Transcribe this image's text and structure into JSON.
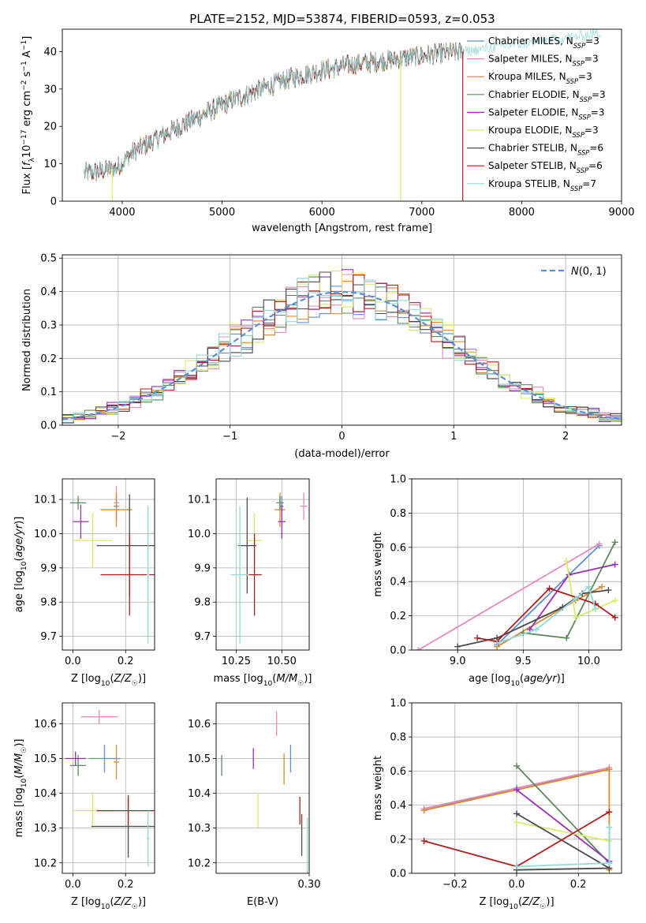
{
  "figure_title": "PLATE=2152, MJD=53874, FIBERID=0593, z=0.053",
  "colors": {
    "Chabrier MILES": "#5f8fd6",
    "Salpeter MILES": "#e58ac0",
    "Kroupa MILES": "#d98a2e",
    "Chabrier ELODIE": "#5c8a5c",
    "Salpeter ELODIE": "#9a2fb5",
    "Kroupa ELODIE": "#d8ec6a",
    "Chabrier STELIB": "#4a4a4a",
    "Salpeter STELIB": "#b01c1c",
    "Kroupa STELIB": "#8fdad8",
    "normal": "#5b8fd6"
  },
  "chart_data": [
    {
      "id": "spectrum",
      "type": "line",
      "title": "PLATE=2152, MJD=53874, FIBERID=0593, z=0.053",
      "xlabel": "wavelength [Angstrom, rest frame]",
      "ylabel": "Flux [f_λ 10^-17 erg cm^-2 s^-1 A^-1]",
      "xlim": [
        3400,
        9000
      ],
      "ylim": [
        0,
        46
      ],
      "xticks": [
        4000,
        5000,
        6000,
        7000,
        8000,
        9000
      ],
      "yticks": [
        0,
        10,
        20,
        30,
        40
      ],
      "legend_loc": "right",
      "legend": [
        {
          "name": "Chabrier MILES, N_SSP=3",
          "base": "Chabrier MILES, N",
          "sub": "SSP",
          "tail": "=3"
        },
        {
          "name": "Salpeter MILES, N_SSP=3",
          "base": "Salpeter MILES, N",
          "sub": "SSP",
          "tail": "=3"
        },
        {
          "name": "Kroupa MILES, N_SSP=3",
          "base": "Kroupa MILES, N",
          "sub": "SSP",
          "tail": "=3"
        },
        {
          "name": "Chabrier ELODIE, N_SSP=3",
          "base": "Chabrier ELODIE, N",
          "sub": "SSP",
          "tail": "=3"
        },
        {
          "name": "Salpeter ELODIE, N_SSP=3",
          "base": "Salpeter ELODIE, N",
          "sub": "SSP",
          "tail": "=3"
        },
        {
          "name": "Kroupa ELODIE, N_SSP=3",
          "base": "Kroupa ELODIE, N",
          "sub": "SSP",
          "tail": "=3"
        },
        {
          "name": "Chabrier STELIB, N_SSP=6",
          "base": "Chabrier STELIB, N",
          "sub": "SSP",
          "tail": "=6"
        },
        {
          "name": "Salpeter STELIB, N_SSP=6",
          "base": "Salpeter STELIB, N",
          "sub": "SSP",
          "tail": "=6"
        },
        {
          "name": "Kroupa STELIB, N_SSP=7",
          "base": "Kroupa STELIB, N",
          "sub": "SSP",
          "tail": "=7"
        }
      ],
      "continuum": [
        [
          3620,
          7.5
        ],
        [
          3800,
          8
        ],
        [
          3950,
          9
        ],
        [
          4100,
          13
        ],
        [
          4300,
          16
        ],
        [
          4500,
          19
        ],
        [
          4800,
          23
        ],
        [
          5100,
          27
        ],
        [
          5400,
          30
        ],
        [
          5700,
          33
        ],
        [
          6000,
          35
        ],
        [
          6300,
          36.5
        ],
        [
          6600,
          37.5
        ],
        [
          6900,
          38.5
        ],
        [
          7200,
          39.5
        ],
        [
          7420,
          40
        ]
      ],
      "noise_amplitude": 2.5,
      "red_extension": {
        "series": "Kroupa STELIB",
        "end_x": 8800,
        "end_y": 45
      },
      "dropouts": [
        {
          "series": "Kroupa ELODIE",
          "x": 3900,
          "y": 0
        },
        {
          "series": "Kroupa ELODIE",
          "x": 6790,
          "y": 0
        },
        {
          "series": "Salpeter STELIB",
          "x": 7410,
          "y": 0
        }
      ]
    },
    {
      "id": "residuals",
      "type": "histogram",
      "xlabel": "(data-model)/error",
      "ylabel": "Normed distribution",
      "xlim": [
        -2.5,
        2.5
      ],
      "ylim": [
        0,
        0.51
      ],
      "xticks": [
        -2,
        -1,
        0,
        1,
        2
      ],
      "yticks": [
        0.0,
        0.1,
        0.2,
        0.3,
        0.4,
        0.5
      ],
      "grid": true,
      "legend_loc": "top-right",
      "reference_curve": {
        "name": "N(0,1)",
        "mean": 0,
        "sigma": 1,
        "style": "dashed"
      },
      "bin_width": 0.1,
      "series": [
        "Chabrier MILES",
        "Salpeter MILES",
        "Kroupa MILES",
        "Chabrier ELODIE",
        "Salpeter ELODIE",
        "Kroupa ELODIE",
        "Chabrier STELIB",
        "Salpeter STELIB",
        "Kroupa STELIB"
      ]
    },
    {
      "id": "age_vs_Z",
      "type": "errorbar",
      "xlabel": "Z [log10(Z/Z☉)]",
      "ylabel": "age [log10(age/yr)]",
      "xlim": [
        -0.04,
        0.31
      ],
      "ylim": [
        9.66,
        10.16
      ],
      "xticks": [
        0.0,
        0.2
      ],
      "yticks": [
        9.7,
        9.8,
        9.9,
        10.0,
        10.1
      ],
      "grid": true,
      "points": [
        {
          "series": "Chabrier MILES",
          "x": 0.165,
          "y": 10.08,
          "xerr": 0.01,
          "yerr": 0.03
        },
        {
          "series": "Salpeter MILES",
          "x": 0.165,
          "y": 10.09,
          "xerr": 0.01,
          "yerr": 0.05
        },
        {
          "series": "Kroupa MILES",
          "x": 0.165,
          "y": 10.07,
          "xerr": 0.06,
          "yerr": 0.05
        },
        {
          "series": "Chabrier ELODIE",
          "x": 0.02,
          "y": 10.09,
          "xerr": 0.03,
          "yerr": 0.02
        },
        {
          "series": "Salpeter ELODIE",
          "x": 0.03,
          "y": 10.035,
          "xerr": 0.03,
          "yerr": 0.05
        },
        {
          "series": "Kroupa ELODIE",
          "x": 0.075,
          "y": 9.98,
          "xerr": 0.075,
          "yerr": 0.08
        },
        {
          "series": "Chabrier STELIB",
          "x": 0.215,
          "y": 9.965,
          "xerr": 0.125,
          "yerr": 0.15
        },
        {
          "series": "Salpeter STELIB",
          "x": 0.215,
          "y": 9.88,
          "xerr": 0.11,
          "yerr": 0.12
        },
        {
          "series": "Kroupa STELIB",
          "x": 0.285,
          "y": 9.88,
          "xerr": 0.005,
          "yerr": 0.2
        }
      ]
    },
    {
      "id": "age_vs_mass",
      "type": "errorbar",
      "xlabel": "mass [log10(M/M☉)]",
      "ylabel": "",
      "xlim": [
        10.14,
        10.65
      ],
      "ylim": [
        9.66,
        10.16
      ],
      "xticks": [
        10.25,
        10.5
      ],
      "yticks": [
        9.7,
        9.8,
        9.9,
        10.0,
        10.1
      ],
      "grid": true,
      "points": [
        {
          "series": "Chabrier MILES",
          "x": 10.5,
          "y": 10.08,
          "xerr": 0.01,
          "yerr": 0.03
        },
        {
          "series": "Salpeter MILES",
          "x": 10.62,
          "y": 10.08,
          "xerr": 0.02,
          "yerr": 0.04
        },
        {
          "series": "Kroupa MILES",
          "x": 10.49,
          "y": 10.07,
          "xerr": 0.03,
          "yerr": 0.05
        },
        {
          "series": "Chabrier ELODIE",
          "x": 10.49,
          "y": 10.09,
          "xerr": 0.02,
          "yerr": 0.02
        },
        {
          "series": "Salpeter ELODIE",
          "x": 10.5,
          "y": 10.035,
          "xerr": 0.02,
          "yerr": 0.05
        },
        {
          "series": "Kroupa ELODIE",
          "x": 10.35,
          "y": 9.98,
          "xerr": 0.04,
          "yerr": 0.08
        },
        {
          "series": "Chabrier STELIB",
          "x": 10.31,
          "y": 9.965,
          "xerr": 0.05,
          "yerr": 0.14
        },
        {
          "series": "Salpeter STELIB",
          "x": 10.35,
          "y": 9.88,
          "xerr": 0.04,
          "yerr": 0.12
        },
        {
          "series": "Kroupa STELIB",
          "x": 10.27,
          "y": 9.88,
          "xerr": 0.05,
          "yerr": 0.2
        }
      ]
    },
    {
      "id": "weights_vs_age",
      "type": "line",
      "xlabel": "age [log10(age/yr)]",
      "ylabel": "mass weight",
      "xlim": [
        8.65,
        10.25
      ],
      "ylim": [
        0,
        1.0
      ],
      "xticks": [
        9.0,
        9.5,
        10.0
      ],
      "yticks": [
        0.0,
        0.2,
        0.4,
        0.6,
        0.8,
        1.0
      ],
      "grid": true,
      "series": [
        {
          "series": "Chabrier MILES",
          "points": [
            [
              9.3,
              0.03
            ],
            [
              9.85,
              0.44
            ],
            [
              10.08,
              0.61
            ]
          ]
        },
        {
          "series": "Salpeter MILES",
          "points": [
            [
              8.7,
              0.0
            ],
            [
              10.08,
              0.62
            ]
          ]
        },
        {
          "series": "Kroupa MILES",
          "points": [
            [
              9.3,
              0.02
            ],
            [
              9.9,
              0.29
            ],
            [
              10.1,
              0.37
            ]
          ]
        },
        {
          "series": "Chabrier ELODIE",
          "points": [
            [
              9.5,
              0.1
            ],
            [
              9.83,
              0.07
            ],
            [
              10.2,
              0.63
            ]
          ]
        },
        {
          "series": "Salpeter ELODIE",
          "points": [
            [
              9.55,
              0.12
            ],
            [
              9.85,
              0.44
            ],
            [
              10.2,
              0.5
            ]
          ]
        },
        {
          "series": "Kroupa ELODIE",
          "points": [
            [
              9.83,
              0.52
            ],
            [
              9.9,
              0.19
            ],
            [
              10.2,
              0.29
            ]
          ]
        },
        {
          "series": "Chabrier STELIB",
          "points": [
            [
              9.0,
              0.02
            ],
            [
              9.3,
              0.07
            ],
            [
              9.8,
              0.25
            ],
            [
              9.95,
              0.33
            ],
            [
              10.15,
              0.35
            ]
          ]
        },
        {
          "series": "Salpeter STELIB",
          "points": [
            [
              9.15,
              0.07
            ],
            [
              9.3,
              0.05
            ],
            [
              9.7,
              0.36
            ],
            [
              10.05,
              0.27
            ],
            [
              10.2,
              0.19
            ]
          ]
        },
        {
          "series": "Kroupa STELIB",
          "points": [
            [
              9.3,
              0.04
            ],
            [
              9.6,
              0.12
            ],
            [
              9.9,
              0.3
            ],
            [
              10.0,
              0.37
            ],
            [
              10.05,
              0.24
            ]
          ]
        }
      ]
    },
    {
      "id": "mass_vs_Z",
      "type": "errorbar",
      "xlabel": "Z [log10(Z/Z☉)]",
      "ylabel": "mass [log10(M/M☉)]",
      "xlim": [
        -0.04,
        0.31
      ],
      "ylim": [
        10.17,
        10.66
      ],
      "xticks": [
        0.0,
        0.2
      ],
      "yticks": [
        10.2,
        10.3,
        10.4,
        10.5,
        10.6
      ],
      "grid": true,
      "points": [
        {
          "series": "Chabrier MILES",
          "x": 0.12,
          "y": 10.5,
          "xerr": 0.06,
          "yerr": 0.04
        },
        {
          "series": "Salpeter MILES",
          "x": 0.1,
          "y": 10.62,
          "xerr": 0.07,
          "yerr": 0.02
        },
        {
          "series": "Kroupa MILES",
          "x": 0.165,
          "y": 10.49,
          "xerr": 0.01,
          "yerr": 0.05
        },
        {
          "series": "Chabrier ELODIE",
          "x": 0.02,
          "y": 10.48,
          "xerr": 0.03,
          "yerr": 0.03
        },
        {
          "series": "Salpeter ELODIE",
          "x": 0.01,
          "y": 10.5,
          "xerr": 0.04,
          "yerr": 0.02
        },
        {
          "series": "Kroupa ELODIE",
          "x": 0.075,
          "y": 10.35,
          "xerr": 0.075,
          "yerr": 0.05
        },
        {
          "series": "Chabrier STELIB",
          "x": 0.21,
          "y": 10.305,
          "xerr": 0.14,
          "yerr": 0.09
        },
        {
          "series": "Salpeter STELIB",
          "x": 0.21,
          "y": 10.35,
          "xerr": 0.12,
          "yerr": 0.04
        },
        {
          "series": "Kroupa STELIB",
          "x": 0.285,
          "y": 10.27,
          "xerr": 0.005,
          "yerr": 0.08
        }
      ]
    },
    {
      "id": "mass_vs_ebv",
      "type": "errorbar",
      "xlabel": "E(B-V)",
      "ylabel": "",
      "xlim": [
        0.2,
        0.3
      ],
      "ylim": [
        10.17,
        10.66
      ],
      "xticks": [
        0.3
      ],
      "yticks": [
        10.2,
        10.3,
        10.4,
        10.5,
        10.6
      ],
      "grid": true,
      "points": [
        {
          "series": "Chabrier MILES",
          "x": 0.28,
          "y": 10.5,
          "xerr": 0,
          "yerr": 0.04
        },
        {
          "series": "Salpeter MILES",
          "x": 0.265,
          "y": 10.6,
          "xerr": 0,
          "yerr": 0.035
        },
        {
          "series": "Kroupa MILES",
          "x": 0.273,
          "y": 10.47,
          "xerr": 0,
          "yerr": 0.045
        },
        {
          "series": "Chabrier ELODIE",
          "x": 0.206,
          "y": 10.48,
          "xerr": 0,
          "yerr": 0.03
        },
        {
          "series": "Salpeter ELODIE",
          "x": 0.24,
          "y": 10.5,
          "xerr": 0,
          "yerr": 0.03
        },
        {
          "series": "Kroupa ELODIE",
          "x": 0.245,
          "y": 10.35,
          "xerr": 0,
          "yerr": 0.05
        },
        {
          "series": "Chabrier STELIB",
          "x": 0.292,
          "y": 10.28,
          "xerr": 0,
          "yerr": 0.06
        },
        {
          "series": "Salpeter STELIB",
          "x": 0.29,
          "y": 10.35,
          "xerr": 0,
          "yerr": 0.04
        },
        {
          "series": "Kroupa STELIB",
          "x": 0.298,
          "y": 10.23,
          "xerr": 0,
          "yerr": 0.1
        }
      ]
    },
    {
      "id": "weights_vs_Z",
      "type": "line",
      "xlabel": "Z [log10(Z/Z☉)]",
      "ylabel": "mass weight",
      "xlim": [
        -0.34,
        0.34
      ],
      "ylim": [
        0,
        1.0
      ],
      "xticks": [
        -0.2,
        0.0,
        0.2
      ],
      "yticks": [
        0.0,
        0.2,
        0.4,
        0.6,
        0.8,
        1.0
      ],
      "grid": true,
      "series": [
        {
          "series": "Chabrier MILES",
          "points": [
            [
              -0.3,
              0.37
            ],
            [
              0.0,
              0.5
            ],
            [
              0.3,
              0.61
            ]
          ]
        },
        {
          "series": "Salpeter MILES",
          "points": [
            [
              -0.3,
              0.38
            ],
            [
              0.3,
              0.62
            ]
          ]
        },
        {
          "series": "Kroupa MILES",
          "points": [
            [
              -0.3,
              0.37
            ],
            [
              0.3,
              0.61
            ],
            [
              0.3,
              0.02
            ]
          ]
        },
        {
          "series": "Chabrier ELODIE",
          "points": [
            [
              0.0,
              0.63
            ],
            [
              0.3,
              0.06
            ]
          ]
        },
        {
          "series": "Salpeter ELODIE",
          "points": [
            [
              0.0,
              0.49
            ],
            [
              0.3,
              0.07
            ]
          ]
        },
        {
          "series": "Kroupa ELODIE",
          "points": [
            [
              0.0,
              0.3
            ],
            [
              0.3,
              0.19
            ]
          ]
        },
        {
          "series": "Chabrier STELIB",
          "points": [
            [
              0.0,
              0.35
            ],
            [
              0.3,
              0.03
            ],
            [
              0.0,
              0.02
            ]
          ]
        },
        {
          "series": "Salpeter STELIB",
          "points": [
            [
              -0.3,
              0.19
            ],
            [
              0.0,
              0.04
            ],
            [
              0.3,
              0.36
            ]
          ]
        },
        {
          "series": "Kroupa STELIB",
          "points": [
            [
              0.0,
              0.04
            ],
            [
              0.3,
              0.06
            ],
            [
              0.3,
              0.27
            ]
          ]
        }
      ]
    }
  ]
}
